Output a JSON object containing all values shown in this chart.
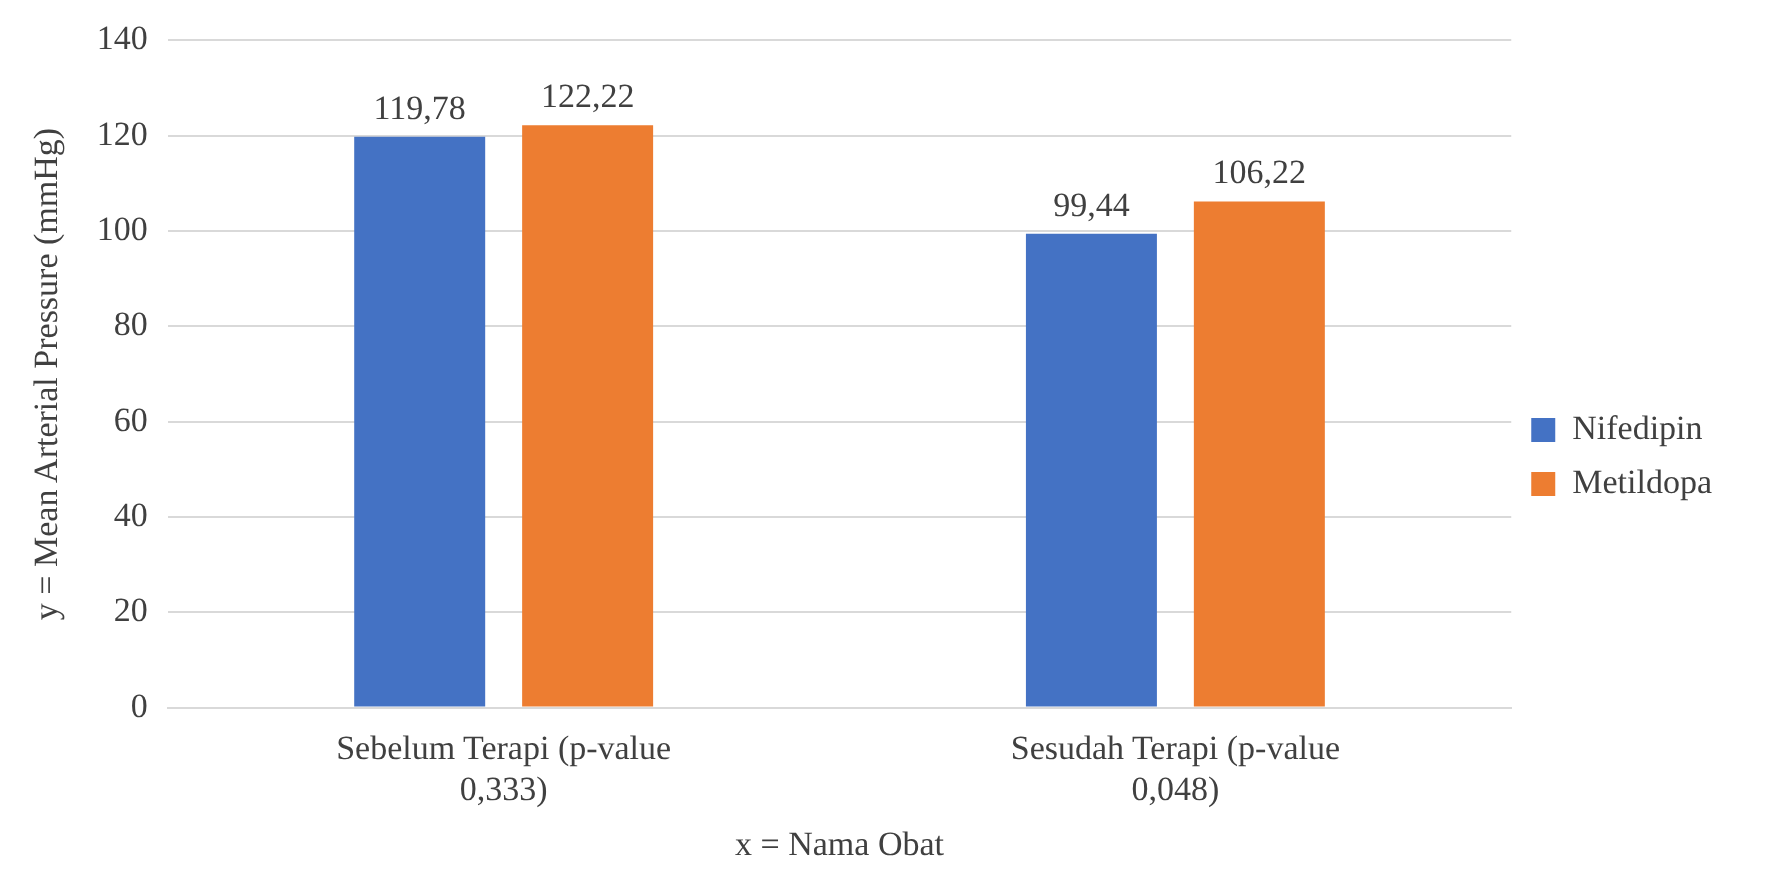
{
  "chart_data": {
    "type": "bar",
    "xlabel": "x = Nama Obat",
    "ylabel": "y = Mean Arterial Pressure (mmHg)",
    "categories": [
      "Sebelum Terapi (p-value 0,333)",
      "Sesudah Terapi (p-value 0,048)"
    ],
    "series": [
      {
        "name": "Nifedipin",
        "color": "#4472c4",
        "values": [
          119.78,
          99.44
        ],
        "value_labels": [
          "119,78",
          "99,44"
        ]
      },
      {
        "name": "Metildopa",
        "color": "#ed7d31",
        "values": [
          122.22,
          106.22
        ],
        "value_labels": [
          "122,22",
          "106,22"
        ]
      }
    ],
    "ylim": [
      0,
      140
    ],
    "yticks": [
      0,
      20,
      40,
      60,
      80,
      100,
      120,
      140
    ],
    "grid": "y",
    "legend": "right"
  }
}
